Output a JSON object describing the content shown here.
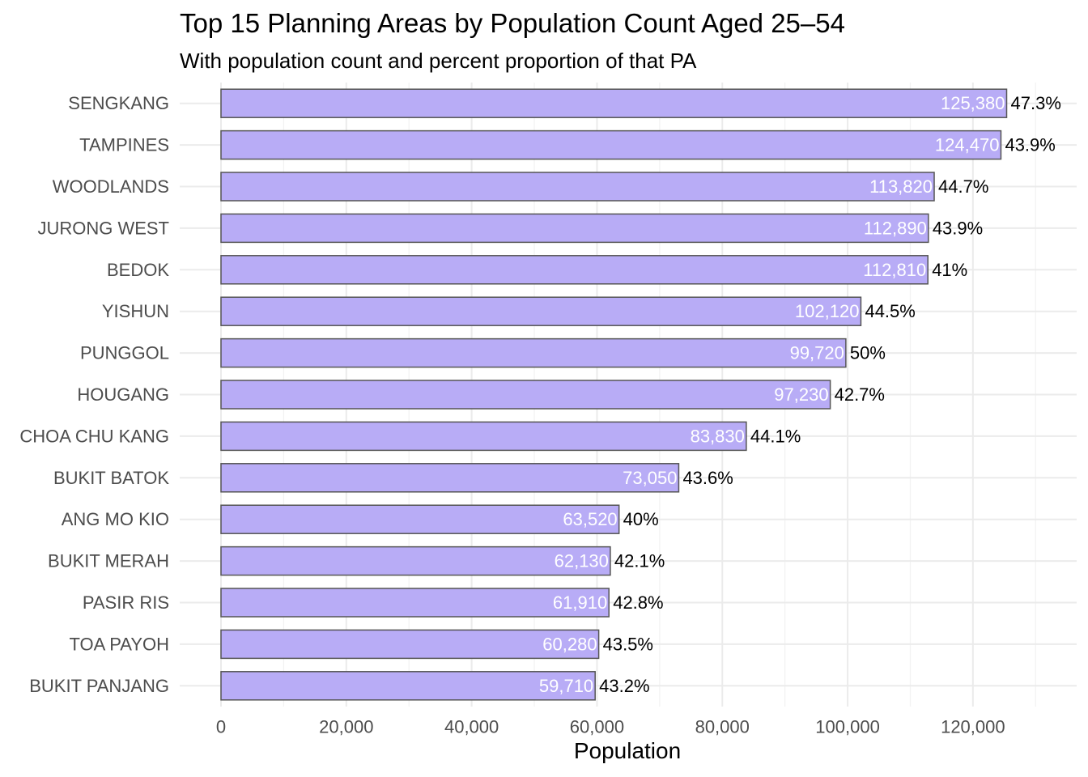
{
  "title": "Top 15 Planning Areas by Population Count Aged 25–54",
  "subtitle": "With population count and percent proportion of that PA",
  "chart_data": {
    "type": "bar",
    "orientation": "horizontal",
    "title": "Top 15 Planning Areas by Population Count Aged 25–54",
    "subtitle": "With population count and percent proportion of that PA",
    "xlabel": "Population",
    "ylabel": "",
    "xlim": [
      0,
      130000
    ],
    "x_ticks": [
      0,
      20000,
      40000,
      60000,
      80000,
      100000,
      120000
    ],
    "x_tick_labels": [
      "0",
      "20,000",
      "40,000",
      "60,000",
      "80,000",
      "100,000",
      "120,000"
    ],
    "grid": true,
    "bar_color": "#b8acf6",
    "bar_outline": "#555555",
    "categories": [
      "SENGKANG",
      "TAMPINES",
      "WOODLANDS",
      "JURONG WEST",
      "BEDOK",
      "YISHUN",
      "PUNGGOL",
      "HOUGANG",
      "CHOA CHU KANG",
      "BUKIT BATOK",
      "ANG MO KIO",
      "BUKIT MERAH",
      "PASIR RIS",
      "TOA PAYOH",
      "BUKIT PANJANG"
    ],
    "values": [
      125380,
      124470,
      113820,
      112890,
      112810,
      102120,
      99720,
      97230,
      83830,
      73050,
      63520,
      62130,
      61910,
      60280,
      59710
    ],
    "value_labels": [
      "125,380",
      "124,470",
      "113,820",
      "112,890",
      "112,810",
      "102,120",
      "99,720",
      "97,230",
      "83,830",
      "73,050",
      "63,520",
      "62,130",
      "61,910",
      "60,280",
      "59,710"
    ],
    "percent_labels": [
      "47.3%",
      "43.9%",
      "44.7%",
      "43.9%",
      "41%",
      "44.5%",
      "50%",
      "42.7%",
      "44.1%",
      "43.6%",
      "40%",
      "42.1%",
      "42.8%",
      "43.5%",
      "43.2%"
    ]
  }
}
